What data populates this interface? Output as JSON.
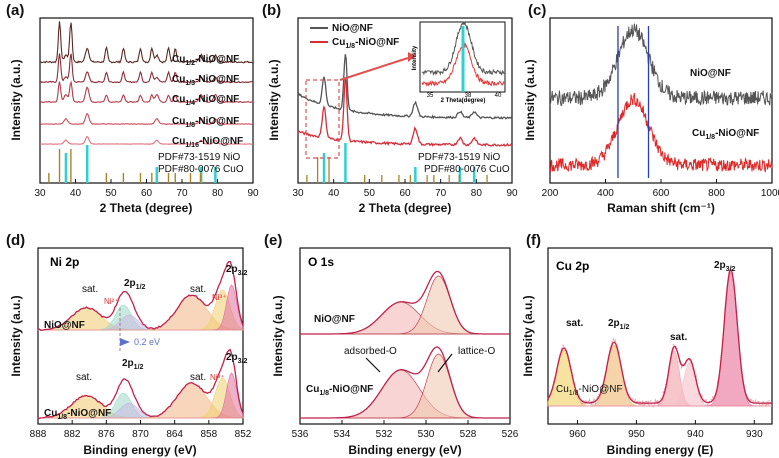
{
  "figure_labels": [
    "(a)",
    "(b)",
    "(c)",
    "(d)",
    "(e)",
    "(f)"
  ],
  "chart_data": [
    {
      "id": "a",
      "type": "line",
      "xlabel": "2 Theta (degree)",
      "ylabel": "Intensity (a.u.)",
      "xlim": [
        30,
        90
      ],
      "xticks": [
        30,
        40,
        50,
        60,
        70,
        80,
        90
      ],
      "series": [
        {
          "name": "Cu1/2-NiO@NF",
          "color": "#5a2a22"
        },
        {
          "name": "Cu1/3-NiO@NF",
          "color": "#8a2d38"
        },
        {
          "name": "Cu1/4-NiO@NF",
          "color": "#b33a48"
        },
        {
          "name": "Cu1/8-NiO@NF",
          "color": "#cc4a58"
        },
        {
          "name": "Cu1/16-NiO@NF",
          "color": "#e07080"
        }
      ],
      "references": [
        {
          "name": "PDF#73-1519  NiO",
          "color": "#2fd0d0",
          "peaks": [
            37.3,
            43.3,
            62.9,
            75.4,
            79.4
          ]
        },
        {
          "name": "PDF#80-0076  CuO",
          "color": "#a7832a",
          "peaks": [
            32.5,
            35.5,
            38.7,
            48.7,
            53.5,
            58.3,
            61.5,
            66.2,
            68.1,
            72.4,
            75.2
          ]
        }
      ]
    },
    {
      "id": "b",
      "type": "line",
      "xlabel": "2 Theta (degree)",
      "ylabel": "Intensity (a.u.)",
      "xlim": [
        30,
        90
      ],
      "xticks": [
        30,
        40,
        50,
        60,
        70,
        80,
        90
      ],
      "series": [
        {
          "name": "NiO@NF",
          "color": "#555555"
        },
        {
          "name": "Cu1/8-NiO@NF",
          "color": "#d32f3a"
        }
      ],
      "peaks": [
        37.3,
        43.3,
        62.9,
        75.4,
        79.4
      ],
      "inset": {
        "xlabel": "2 Theta(degree)",
        "ylabel": "Intensity",
        "xticks": [
          35,
          38,
          40
        ]
      },
      "references": [
        {
          "name": "PDF#73-1519 NiO",
          "color": "#2fd0d0"
        },
        {
          "name": "PDF#80-0076 CuO",
          "color": "#a7832a"
        }
      ]
    },
    {
      "id": "c",
      "type": "line",
      "xlabel": "Raman shift (cm⁻¹)",
      "ylabel": "Intensity (a.u.)",
      "xlim": [
        200,
        1000
      ],
      "xticks": [
        200,
        400,
        600,
        800,
        1000
      ],
      "peak_center": 500,
      "guide_lines": [
        445,
        555
      ],
      "series": [
        {
          "name": "NiO@NF",
          "color": "#555555"
        },
        {
          "name": "Cu1/8-NiO@NF",
          "color": "#e02828"
        }
      ]
    },
    {
      "id": "d",
      "type": "line",
      "title": "Ni 2p",
      "xlabel": "Binding energy (eV)",
      "ylabel": "Intensity (a.u.)",
      "xlim": [
        888,
        852
      ],
      "xticks": [
        888,
        882,
        876,
        870,
        864,
        858,
        852
      ],
      "annotations": [
        "sat.",
        "2p1/2",
        "sat.",
        "2p3/2",
        "Ni²⁺",
        "Ni³⁺",
        "0.2 eV"
      ],
      "series": [
        {
          "name": "NiO@NF"
        },
        {
          "name": "Cu1/8-NiO@NF"
        }
      ]
    },
    {
      "id": "e",
      "type": "line",
      "title": "O 1s",
      "xlabel": "Binding energy (eV)",
      "ylabel": "Intensity (a.u.)",
      "xlim": [
        536,
        526
      ],
      "xticks": [
        536,
        534,
        532,
        530,
        528,
        526
      ],
      "components": [
        {
          "name": "adsorbed-O",
          "center": 531.2
        },
        {
          "name": "lattice-O",
          "center": 529.4
        }
      ],
      "series": [
        {
          "name": "NiO@NF"
        },
        {
          "name": "Cu1/8-NiO@NF"
        }
      ]
    },
    {
      "id": "f",
      "type": "line",
      "title": "Cu 2p",
      "xlabel": "Binding energy (E)",
      "ylabel": "Intensity (a.u.)",
      "xlim": [
        965,
        927
      ],
      "xticks": [
        960,
        950,
        940,
        930
      ],
      "annotations": [
        "sat.",
        "2p1/2",
        "sat.",
        "2p3/2"
      ],
      "sample_label": "Cu1/8-NiO@NF",
      "peaks": [
        {
          "name": "sat.",
          "center": 962.3
        },
        {
          "name": "2p1/2",
          "center": 953.8
        },
        {
          "name": "sat.",
          "center": 943.6
        },
        {
          "name": "sat.",
          "center": 941.0
        },
        {
          "name": "2p3/2",
          "center": 934.0
        }
      ]
    }
  ]
}
